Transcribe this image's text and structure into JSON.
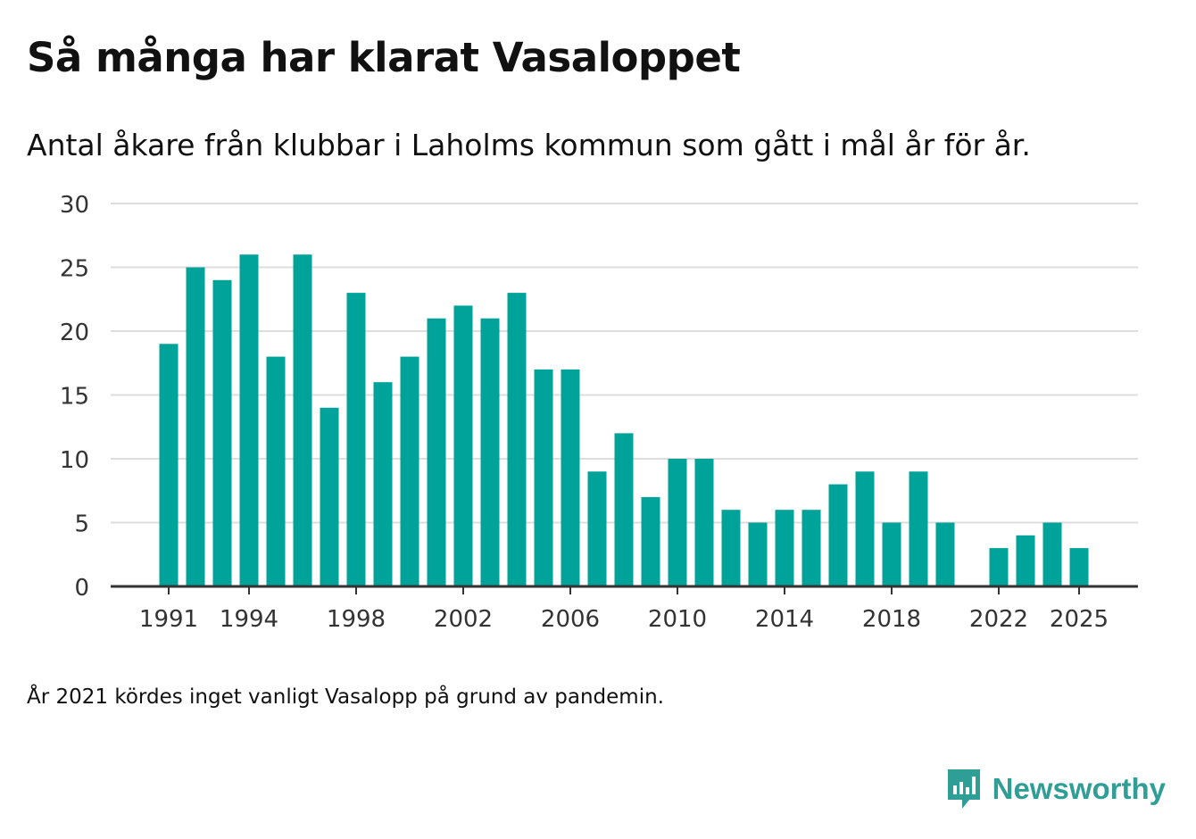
{
  "title": "Så många har klarat Vasaloppet",
  "subtitle": "Antal åkare från klubbar i Laholms kommun som gått i mål år för år.",
  "note": "År 2021 kördes inget vanligt Vasalopp på grund av pandemin.",
  "brand": {
    "name": "Newsworthy",
    "logo_icon": "newsworthy-logo-icon"
  },
  "colors": {
    "bar": "#00a399",
    "grid": "#dddddd",
    "axis": "#333333",
    "brand": "#2e9e97"
  },
  "chart_data": {
    "type": "bar",
    "title": "Så många har klarat Vasaloppet",
    "subtitle": "Antal åkare från klubbar i Laholms kommun som gått i mål år för år.",
    "xlabel": "",
    "ylabel": "",
    "ylim": [
      0,
      30
    ],
    "yticks": [
      0,
      5,
      10,
      15,
      20,
      25,
      30
    ],
    "xticks": [
      1991,
      1994,
      1998,
      2002,
      2006,
      2010,
      2014,
      2018,
      2022,
      2025
    ],
    "grid": true,
    "categories": [
      1991,
      1992,
      1993,
      1994,
      1995,
      1996,
      1997,
      1998,
      1999,
      2000,
      2001,
      2002,
      2003,
      2004,
      2005,
      2006,
      2007,
      2008,
      2009,
      2010,
      2011,
      2012,
      2013,
      2014,
      2015,
      2016,
      2017,
      2018,
      2019,
      2020,
      2021,
      2022,
      2023,
      2024,
      2025
    ],
    "values": [
      19,
      25,
      24,
      26,
      18,
      26,
      14,
      23,
      16,
      18,
      21,
      22,
      21,
      23,
      17,
      17,
      9,
      12,
      7,
      10,
      10,
      6,
      5,
      6,
      6,
      8,
      9,
      5,
      9,
      5,
      null,
      3,
      4,
      5,
      3
    ]
  }
}
